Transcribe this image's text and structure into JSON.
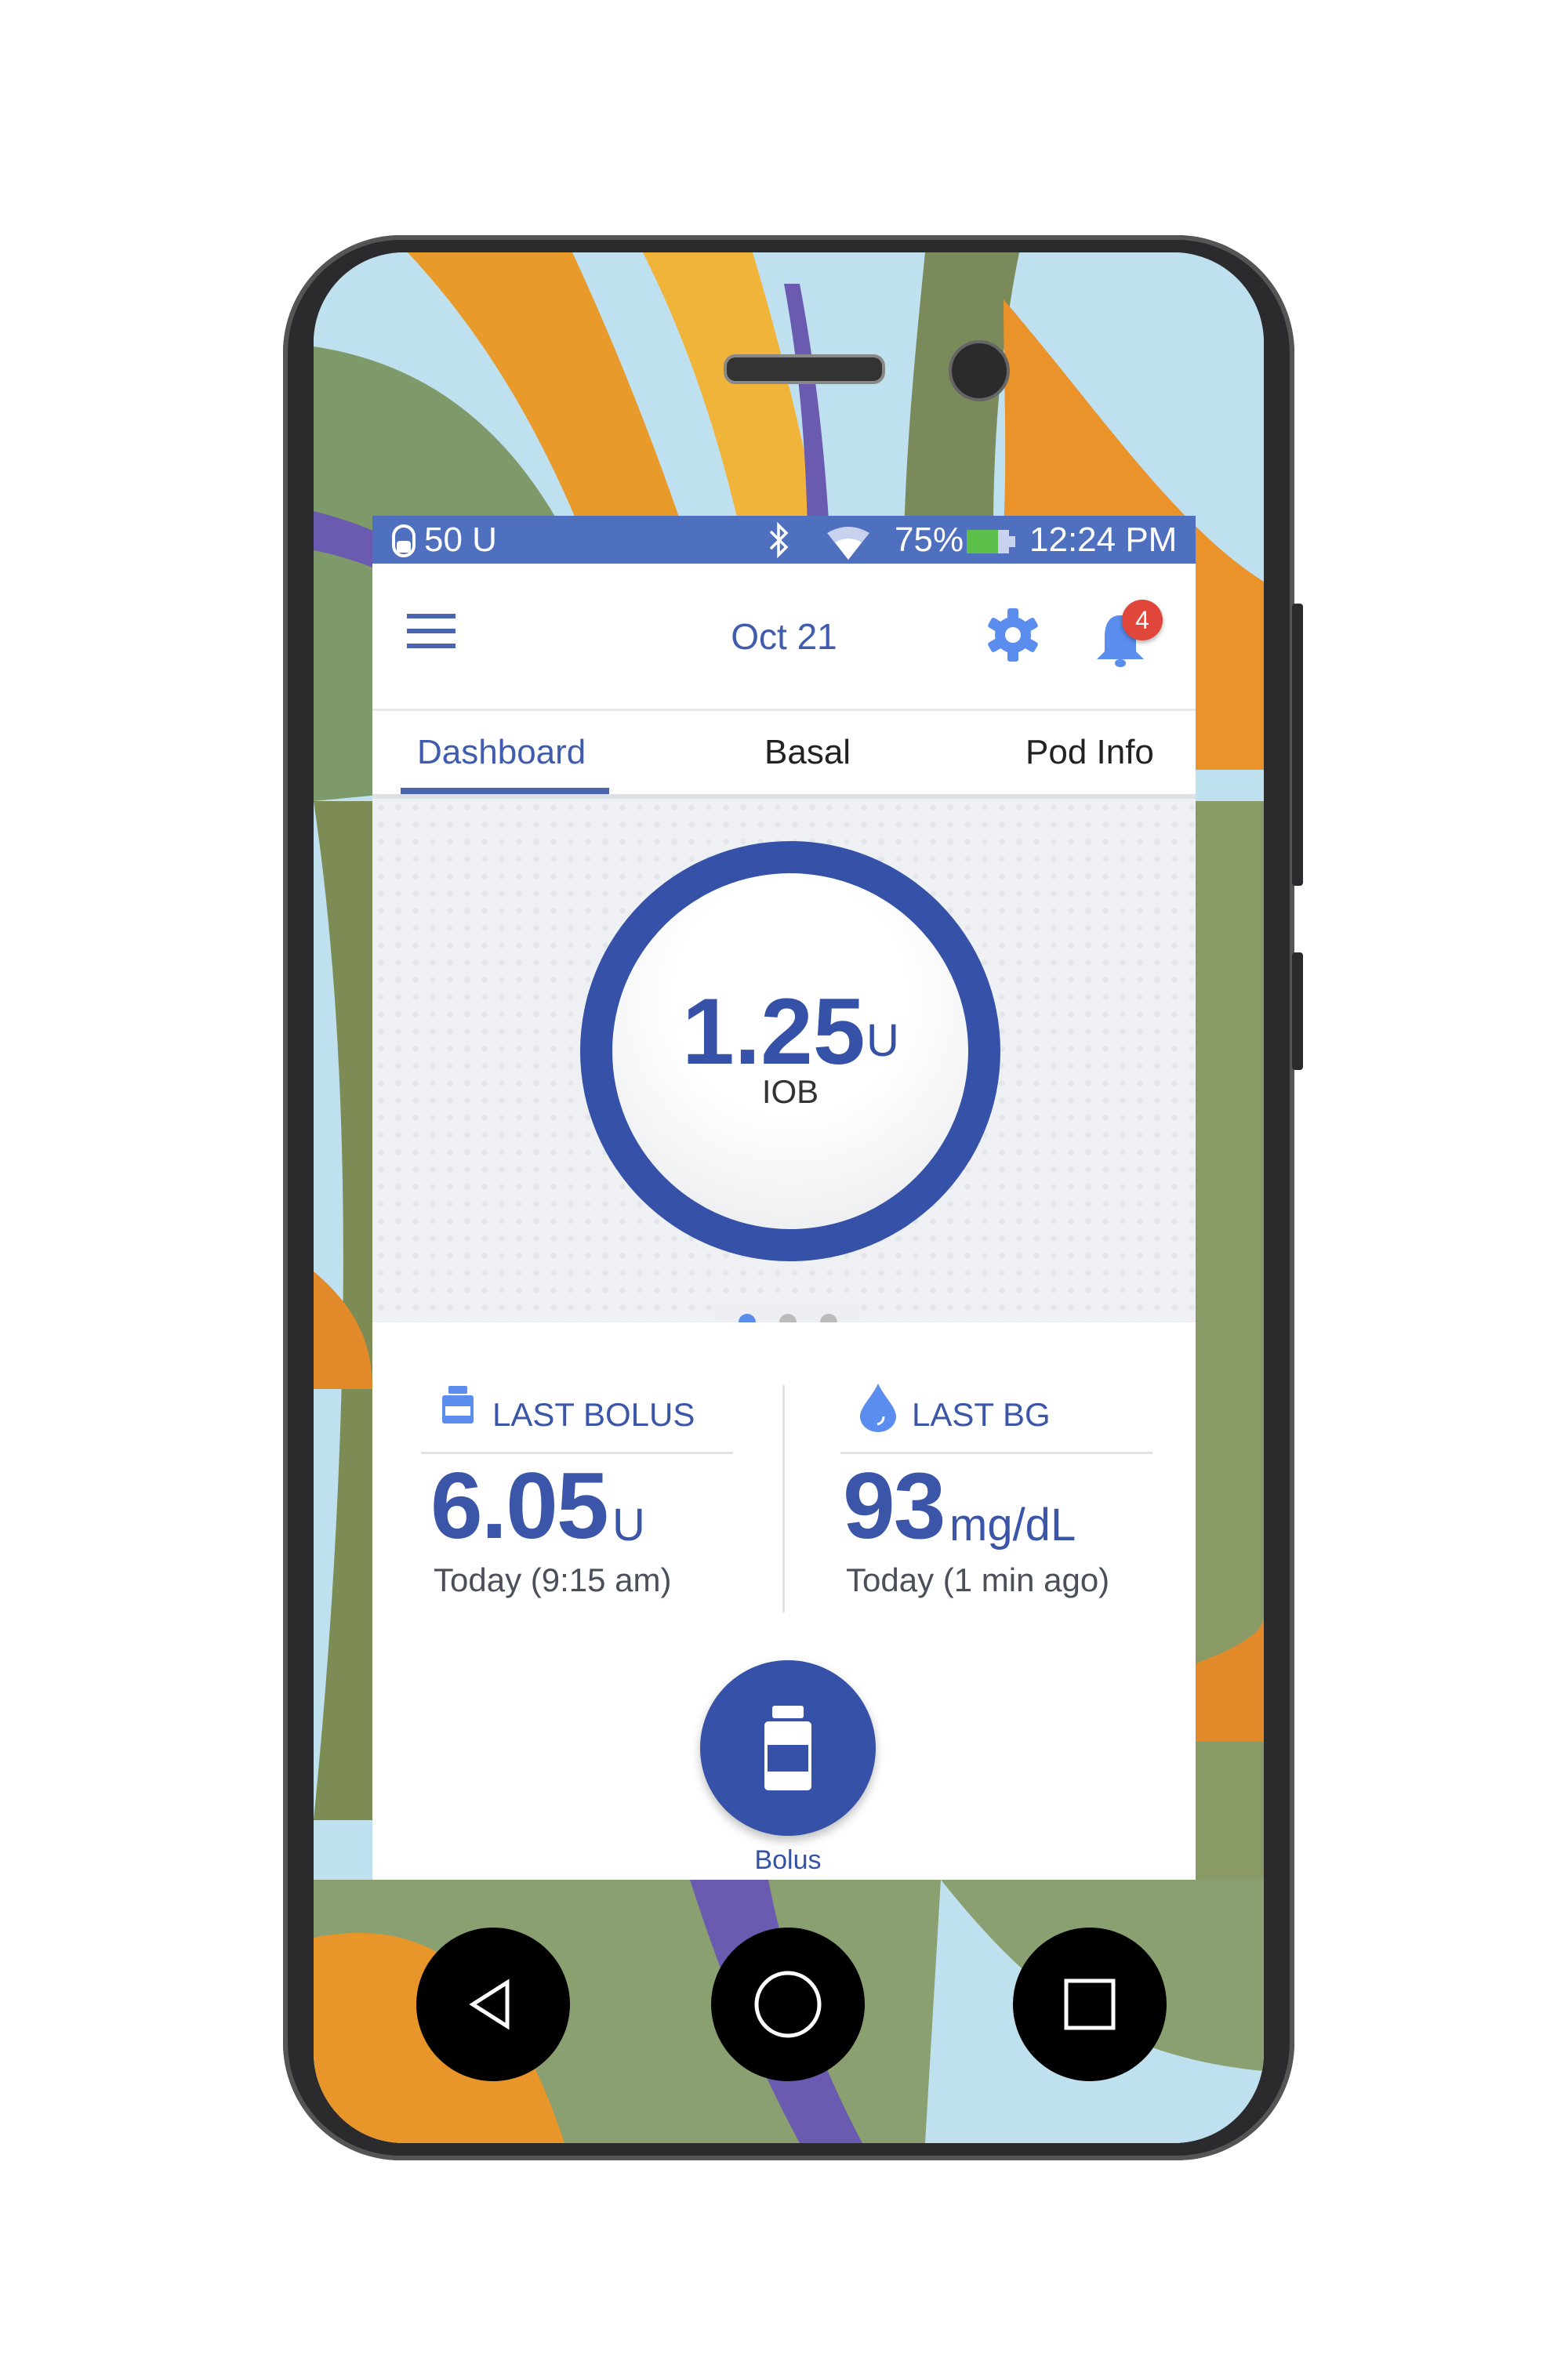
{
  "status_bar": {
    "reservoir": "50 U",
    "battery_percent": "75%",
    "battery_level": 0.75,
    "time": "12:24 PM",
    "icons": [
      "pod-reservoir-icon",
      "bluetooth-icon",
      "wifi-icon",
      "battery-icon"
    ]
  },
  "header": {
    "date": "Oct 21",
    "notification_count": "4",
    "icons": [
      "menu-icon",
      "gear-icon",
      "bell-icon"
    ]
  },
  "tabs": [
    {
      "label": "Dashboard",
      "active": true
    },
    {
      "label": "Basal",
      "active": false
    },
    {
      "label": "Pod Info",
      "active": false
    }
  ],
  "iob": {
    "value": "1.25",
    "unit": "U",
    "label": "IOB"
  },
  "pager": {
    "pages": 3,
    "active": 1
  },
  "last_bolus": {
    "title": "LAST BOLUS",
    "value": "6.05",
    "unit": "U",
    "time": "Today (9:15 am)"
  },
  "last_bg": {
    "title": "LAST BG",
    "value": "93",
    "unit": "mg/dL",
    "time": "Today (1 min ago)"
  },
  "bolus_button": {
    "label": "Bolus"
  },
  "colors": {
    "primary": "#3552a8",
    "status_bar": "#4f6fbf",
    "accent_light": "#5b8def",
    "badge": "#e0463a",
    "battery": "#5cbf4a"
  }
}
